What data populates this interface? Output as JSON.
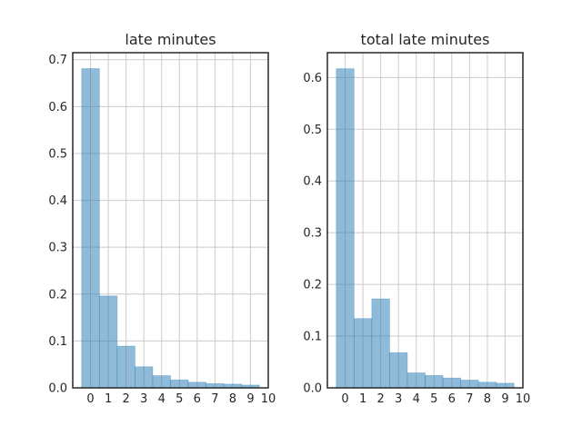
{
  "chart_data": [
    {
      "type": "bar",
      "title": "late minutes",
      "xlabel": "",
      "ylabel": "",
      "bins": [
        [
          -0.5,
          0.5
        ],
        [
          0.5,
          1.5
        ],
        [
          1.5,
          2.5
        ],
        [
          2.5,
          3.5
        ],
        [
          3.5,
          4.5
        ],
        [
          4.5,
          5.5
        ],
        [
          5.5,
          6.5
        ],
        [
          6.5,
          7.5
        ],
        [
          7.5,
          8.5
        ],
        [
          8.5,
          9.5
        ]
      ],
      "values": [
        0.681,
        0.196,
        0.089,
        0.045,
        0.026,
        0.017,
        0.012,
        0.009,
        0.008,
        0.006
      ],
      "xlim": [
        -1,
        10
      ],
      "ylim": [
        0,
        0.715
      ],
      "xticks": [
        0,
        1,
        2,
        3,
        4,
        5,
        6,
        7,
        8,
        9,
        10
      ],
      "xtick_labels": [
        "0",
        "1",
        "2",
        "3",
        "4",
        "5",
        "6",
        "7",
        "8",
        "9",
        "10"
      ],
      "yticks": [
        0.0,
        0.1,
        0.2,
        0.3,
        0.4,
        0.5,
        0.6,
        0.7
      ],
      "ytick_labels": [
        "0.0",
        "0.1",
        "0.2",
        "0.3",
        "0.4",
        "0.5",
        "0.6",
        "0.7"
      ],
      "grid": true,
      "color": "#1f77b4",
      "alpha": 0.5
    },
    {
      "type": "bar",
      "title": "total late minutes",
      "xlabel": "",
      "ylabel": "",
      "bins": [
        [
          -0.5,
          0.5
        ],
        [
          0.5,
          1.5
        ],
        [
          1.5,
          2.5
        ],
        [
          2.5,
          3.5
        ],
        [
          3.5,
          4.5
        ],
        [
          4.5,
          5.5
        ],
        [
          5.5,
          6.5
        ],
        [
          6.5,
          7.5
        ],
        [
          7.5,
          8.5
        ],
        [
          8.5,
          9.5
        ]
      ],
      "values": [
        0.617,
        0.134,
        0.172,
        0.068,
        0.029,
        0.024,
        0.019,
        0.015,
        0.011,
        0.009
      ],
      "xlim": [
        -1,
        10
      ],
      "ylim": [
        0,
        0.648
      ],
      "xticks": [
        0,
        1,
        2,
        3,
        4,
        5,
        6,
        7,
        8,
        9,
        10
      ],
      "xtick_labels": [
        "0",
        "1",
        "2",
        "3",
        "4",
        "5",
        "6",
        "7",
        "8",
        "9",
        "10"
      ],
      "yticks": [
        0.0,
        0.1,
        0.2,
        0.3,
        0.4,
        0.5,
        0.6
      ],
      "ytick_labels": [
        "0.0",
        "0.1",
        "0.2",
        "0.3",
        "0.4",
        "0.5",
        "0.6"
      ],
      "grid": true,
      "color": "#1f77b4",
      "alpha": 0.5
    }
  ]
}
